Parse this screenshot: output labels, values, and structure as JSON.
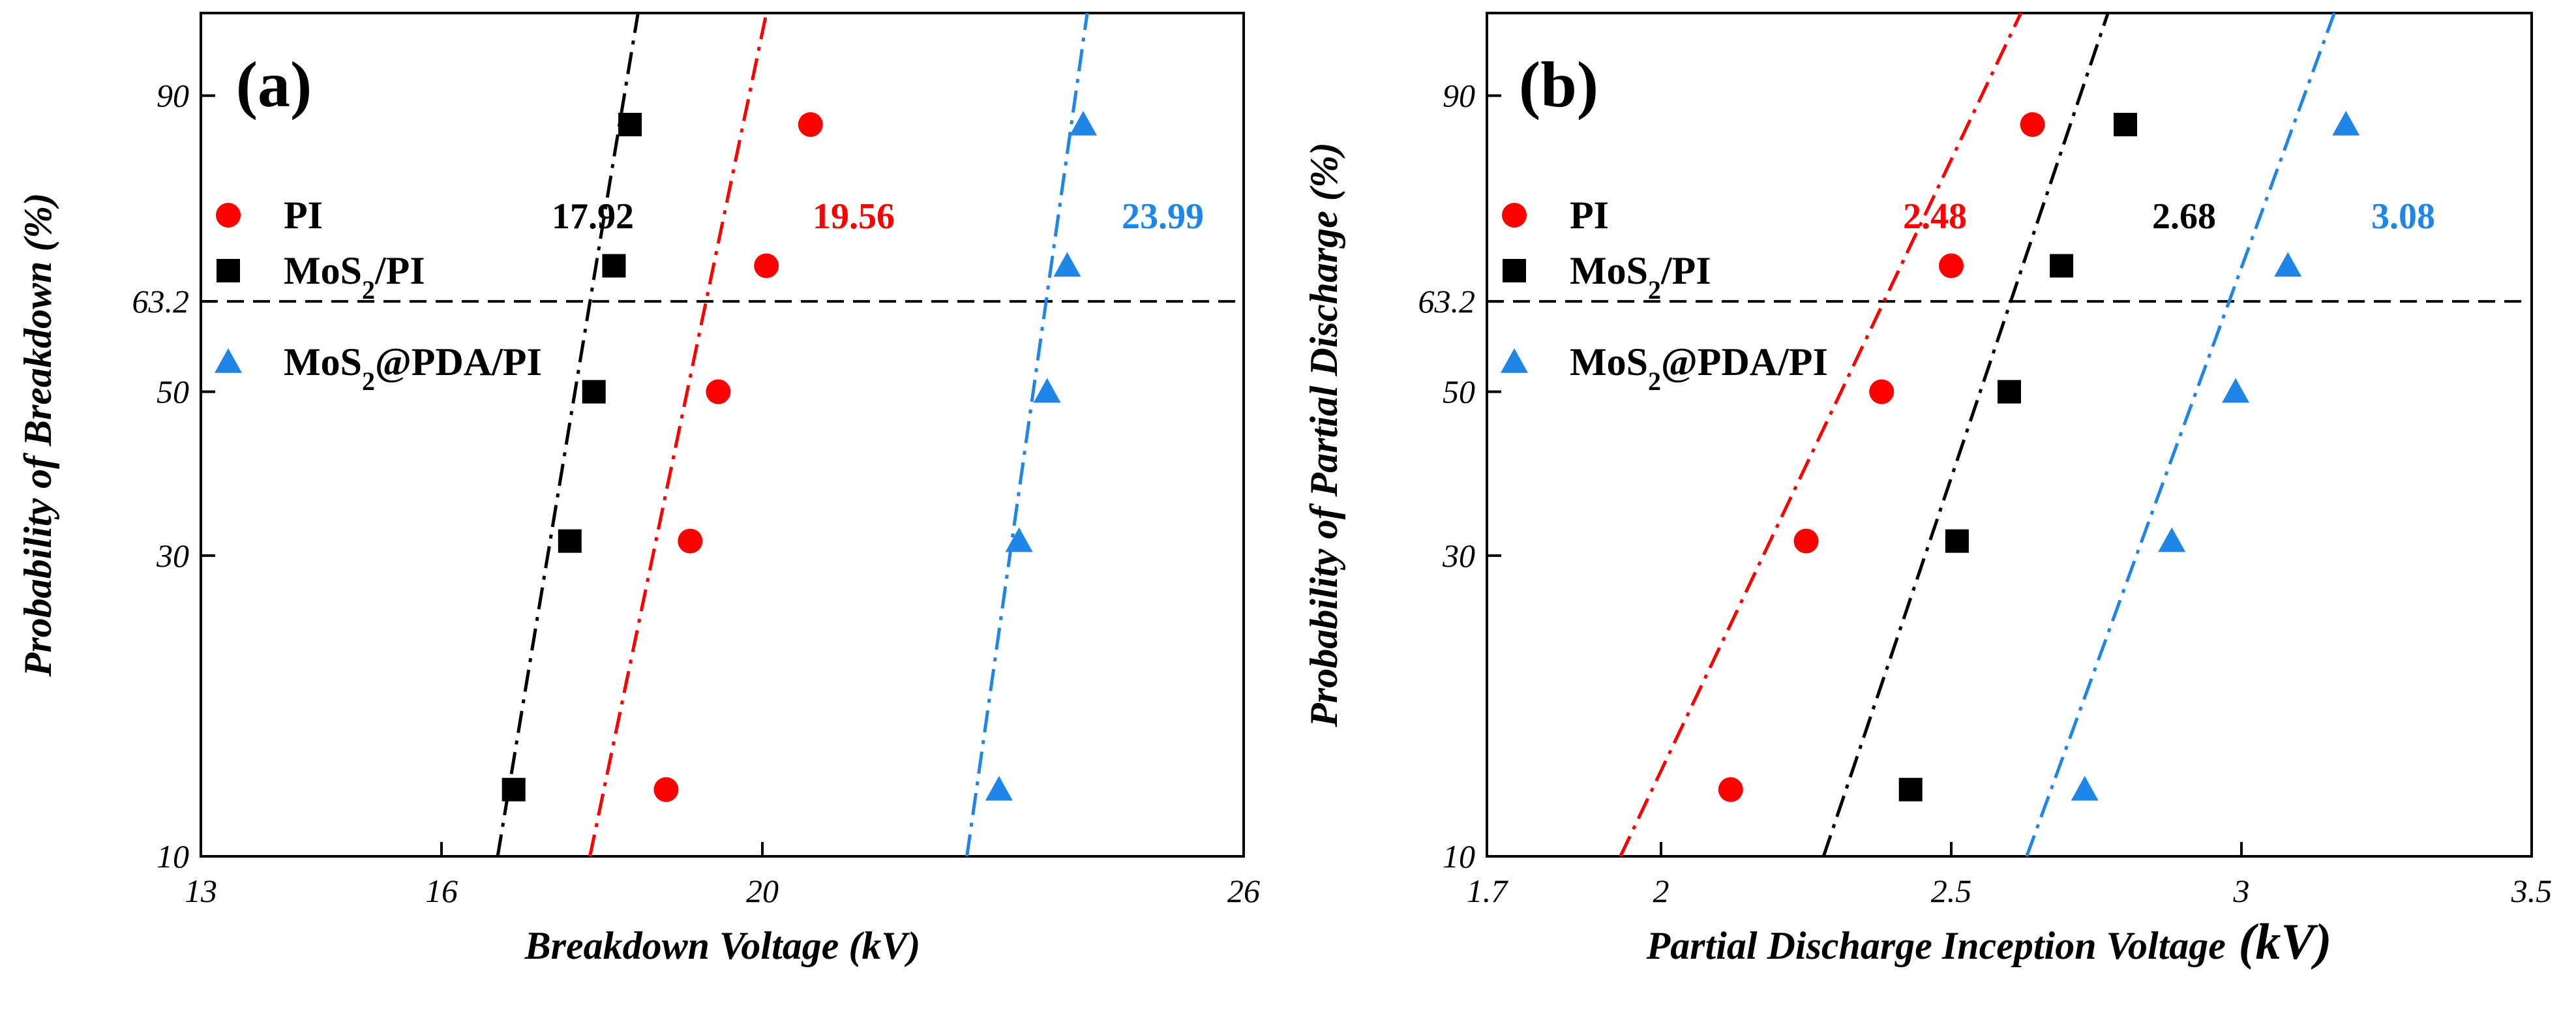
{
  "colors": {
    "PI": "#ff0000",
    "MoS2/PI": "#000000",
    "MoS2@PDA/PI": "#1f86e8",
    "axis": "#000000",
    "refline": "#000000"
  },
  "chart_data": [
    {
      "type": "scatter",
      "panel_label": "(a)",
      "title": "",
      "xlabel": "Breakdown Voltage (kV)",
      "ylabel": "Probability of Breakdown (%)",
      "xlim": [
        13,
        26
      ],
      "ylim": [
        10,
        96
      ],
      "yscale": "weibull",
      "x_ticks": [
        13,
        16,
        20,
        26
      ],
      "x_tick_labels": [
        "13",
        "16",
        "20",
        "26"
      ],
      "y_ticks": [
        10,
        30,
        50,
        63.2,
        90
      ],
      "y_tick_labels": [
        "10",
        "30",
        "50",
        "63.2",
        "90"
      ],
      "reference_line": {
        "y": 63.2,
        "style": "dashed"
      },
      "legend": {
        "placement": "left-middle",
        "entries": [
          {
            "name": "PI",
            "marker": "circle",
            "color": "#ff0000"
          },
          {
            "name_main": "MoS",
            "name_sub": "2",
            "name_rest": "/PI",
            "marker": "square",
            "color": "#000000"
          },
          {
            "name_main": "MoS",
            "name_sub": "2",
            "name_rest": "@PDA/PI",
            "marker": "triangle",
            "color": "#1f86e8"
          }
        ]
      },
      "series": [
        {
          "name": "PI",
          "marker": "circle",
          "color": "#ff0000",
          "points": [
            {
              "x": 18.8,
              "y": 12.9
            },
            {
              "x": 19.1,
              "y": 31.5
            },
            {
              "x": 19.45,
              "y": 50
            },
            {
              "x": 20.05,
              "y": 68.5
            },
            {
              "x": 20.6,
              "y": 87.1
            }
          ],
          "fit": {
            "x_at_10": 17.85,
            "x_at_max": 20.05
          },
          "eta_label": "19.56"
        },
        {
          "name": "MoS2/PI",
          "marker": "square",
          "color": "#000000",
          "points": [
            {
              "x": 16.9,
              "y": 12.9
            },
            {
              "x": 17.6,
              "y": 31.5
            },
            {
              "x": 17.9,
              "y": 50
            },
            {
              "x": 18.15,
              "y": 68.5
            },
            {
              "x": 18.35,
              "y": 87.1
            }
          ],
          "fit": {
            "x_at_10": 16.7,
            "x_at_max": 18.45
          },
          "eta_label": "17.92"
        },
        {
          "name": "MoS2@PDA/PI",
          "marker": "triangle",
          "color": "#1f86e8",
          "points": [
            {
              "x": 22.95,
              "y": 12.9
            },
            {
              "x": 23.2,
              "y": 31.5
            },
            {
              "x": 23.55,
              "y": 50
            },
            {
              "x": 23.8,
              "y": 68.5
            },
            {
              "x": 24.0,
              "y": 87.1
            }
          ],
          "fit": {
            "x_at_10": 22.55,
            "x_at_max": 24.05
          },
          "eta_label": "23.99"
        }
      ]
    },
    {
      "type": "scatter",
      "panel_label": "(b)",
      "title": "",
      "xlabel": "Partial Discharge Inception Voltage",
      "xlabel_unit": "(kV)",
      "ylabel": "Probability of Partial Discharge (%)",
      "xlim": [
        1.7,
        3.5
      ],
      "ylim": [
        10,
        96
      ],
      "yscale": "weibull",
      "x_ticks": [
        1.7,
        2,
        2.5,
        3,
        3.5
      ],
      "x_tick_labels": [
        "1.7",
        "2",
        "2.5",
        "3",
        "3.5"
      ],
      "y_ticks": [
        10,
        30,
        50,
        63.2,
        90
      ],
      "y_tick_labels": [
        "10",
        "30",
        "50",
        "63.2",
        "90"
      ],
      "reference_line": {
        "y": 63.2,
        "style": "dashed"
      },
      "legend": {
        "placement": "left-middle",
        "entries": [
          {
            "name": "PI",
            "marker": "circle",
            "color": "#ff0000"
          },
          {
            "name_main": "MoS",
            "name_sub": "2",
            "name_rest": "/PI",
            "marker": "square",
            "color": "#000000"
          },
          {
            "name_main": "MoS",
            "name_sub": "2",
            "name_rest": "@PDA/PI",
            "marker": "triangle",
            "color": "#1f86e8"
          }
        ]
      },
      "series": [
        {
          "name": "PI",
          "marker": "circle",
          "color": "#ff0000",
          "points": [
            {
              "x": 2.12,
              "y": 12.9
            },
            {
              "x": 2.25,
              "y": 31.5
            },
            {
              "x": 2.38,
              "y": 50
            },
            {
              "x": 2.5,
              "y": 68.5
            },
            {
              "x": 2.64,
              "y": 87.1
            }
          ],
          "fit": {
            "x_at_10": 1.93,
            "x_at_max": 2.62
          },
          "eta_label": "2.48"
        },
        {
          "name": "MoS2/PI",
          "marker": "square",
          "color": "#000000",
          "points": [
            {
              "x": 2.43,
              "y": 12.9
            },
            {
              "x": 2.51,
              "y": 31.5
            },
            {
              "x": 2.6,
              "y": 50
            },
            {
              "x": 2.69,
              "y": 68.5
            },
            {
              "x": 2.8,
              "y": 87.1
            }
          ],
          "fit": {
            "x_at_10": 2.28,
            "x_at_max": 2.77
          },
          "eta_label": "2.68"
        },
        {
          "name": "MoS2@PDA/PI",
          "marker": "triangle",
          "color": "#1f86e8",
          "points": [
            {
              "x": 2.73,
              "y": 12.9
            },
            {
              "x": 2.88,
              "y": 31.5
            },
            {
              "x": 2.99,
              "y": 50
            },
            {
              "x": 3.08,
              "y": 68.5
            },
            {
              "x": 3.18,
              "y": 87.1
            }
          ],
          "fit": {
            "x_at_10": 2.63,
            "x_at_max": 3.16
          },
          "eta_label": "3.08"
        }
      ]
    }
  ]
}
